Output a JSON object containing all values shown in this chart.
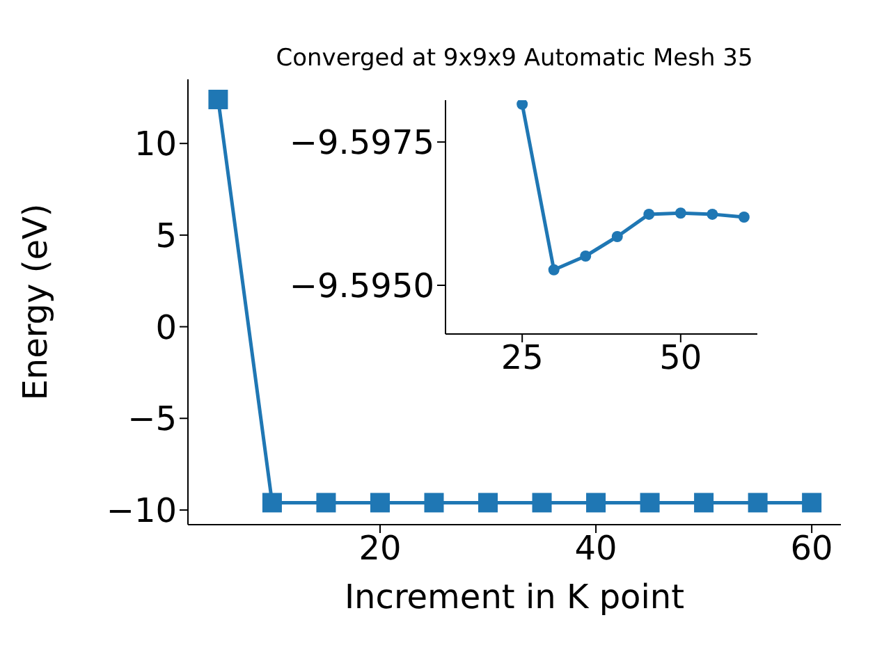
{
  "chart_data": [
    {
      "type": "line",
      "title": "Converged at 9x9x9 Automatic Mesh 35",
      "xlabel": "Increment in K point",
      "ylabel": "Energy (eV)",
      "x": [
        5,
        10,
        15,
        20,
        25,
        30,
        35,
        40,
        45,
        50,
        55,
        60
      ],
      "values": [
        12.4,
        -9.6,
        -9.6,
        -9.6,
        -9.6,
        -9.6,
        -9.6,
        -9.6,
        -9.6,
        -9.6,
        -9.6,
        -9.6
      ],
      "color": "#1f77b4",
      "marker": "square",
      "line_style": "solid",
      "xlim": [
        2.2,
        62.7
      ],
      "ylim": [
        -10.8,
        13.5
      ],
      "xticks": [
        20,
        40,
        60
      ],
      "yticks": [
        -10,
        -5,
        0,
        5,
        10
      ]
    },
    {
      "type": "line",
      "x": [
        25,
        30,
        35,
        40,
        45,
        50,
        55,
        60
      ],
      "values": [
        -9.59816,
        -9.59527,
        -9.59551,
        -9.59585,
        -9.59624,
        -9.59626,
        -9.59624,
        -9.59619
      ],
      "color": "#1f77b4",
      "marker": "circle",
      "line_style": "solid",
      "xlim": [
        12.9,
        62.1
      ],
      "ylim": [
        -9.59415,
        -9.59823
      ],
      "xticks": [
        25,
        50
      ],
      "yticks": [
        {
          "value": -9.5975,
          "label": "−9.5975"
        },
        {
          "value": -9.595,
          "label": "−9.5950"
        }
      ]
    }
  ]
}
